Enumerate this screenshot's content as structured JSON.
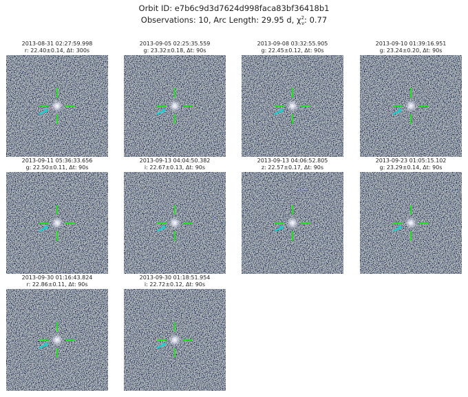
{
  "header": {
    "title": "Orbit ID: e7b6c9d3d7624d998faca83bf36418b1",
    "stats": "Observations: 10, Arc Length: 29.95 d,",
    "chi_symbol": "χ",
    "chi_sup": "2",
    "chi_sub": "ν",
    "chi_value": ": 0.77"
  },
  "panels": [
    {
      "time": "2013-08-31 02:27:59.998",
      "info": "r: 22.40±0.14, Δt: 300s"
    },
    {
      "time": "2013-09-05 02:25:35.559",
      "info": "g: 23.32±0.18, Δt: 90s"
    },
    {
      "time": "2013-09-08 03:32:55.905",
      "info": "g: 22.45±0.12, Δt: 90s"
    },
    {
      "time": "2013-09-10 01:39:16.951",
      "info": "g: 23.24±0.20, Δt: 90s"
    },
    {
      "time": "2013-09-11 05:36:33.656",
      "info": "g: 22.50±0.11, Δt: 90s"
    },
    {
      "time": "2013-09-13 04:04:50.382",
      "info": "i: 22.67±0.13, Δt: 90s"
    },
    {
      "time": "2013-09-13 04:06:52.805",
      "info": "z: 22.57±0.17, Δt: 90s"
    },
    {
      "time": "2013-09-23 01:05:15.102",
      "info": "g: 23.29±0.14, Δt: 90s"
    },
    {
      "time": "2013-09-30 01:16:43.824",
      "info": "r: 22.86±0.11, Δt: 90s"
    },
    {
      "time": "2013-09-30 01:18:51.954",
      "info": "i: 22.72±0.12, Δt: 90s"
    }
  ]
}
